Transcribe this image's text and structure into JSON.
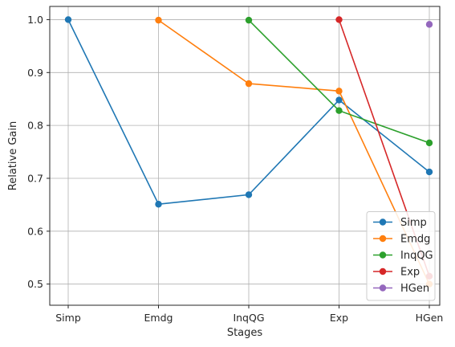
{
  "chart_data": {
    "type": "line",
    "title": "",
    "xlabel": "Stages",
    "ylabel": "Relative Gain",
    "categories": [
      "Simp",
      "Emdg",
      "InqQG",
      "Exp",
      "HGen"
    ],
    "ylim": [
      0.46,
      1.025
    ],
    "yticks": [
      "0.5",
      "0.6",
      "0.7",
      "0.8",
      "0.9",
      "1.0"
    ],
    "grid": true,
    "legend_position": "lower-right",
    "series": [
      {
        "name": "Simp",
        "color": "#1f77b4",
        "values": [
          1.0,
          0.651,
          0.669,
          0.848,
          0.712
        ]
      },
      {
        "name": "Emdg",
        "color": "#ff7f0e",
        "values": [
          null,
          0.999,
          0.879,
          0.865,
          0.5
        ]
      },
      {
        "name": "InqQG",
        "color": "#2ca02c",
        "values": [
          null,
          null,
          0.999,
          0.828,
          0.767
        ]
      },
      {
        "name": "Exp",
        "color": "#d62728",
        "values": [
          null,
          null,
          null,
          1.0,
          0.515
        ]
      },
      {
        "name": "HGen",
        "color": "#9467bd",
        "values": [
          null,
          null,
          null,
          null,
          0.991
        ]
      }
    ]
  }
}
